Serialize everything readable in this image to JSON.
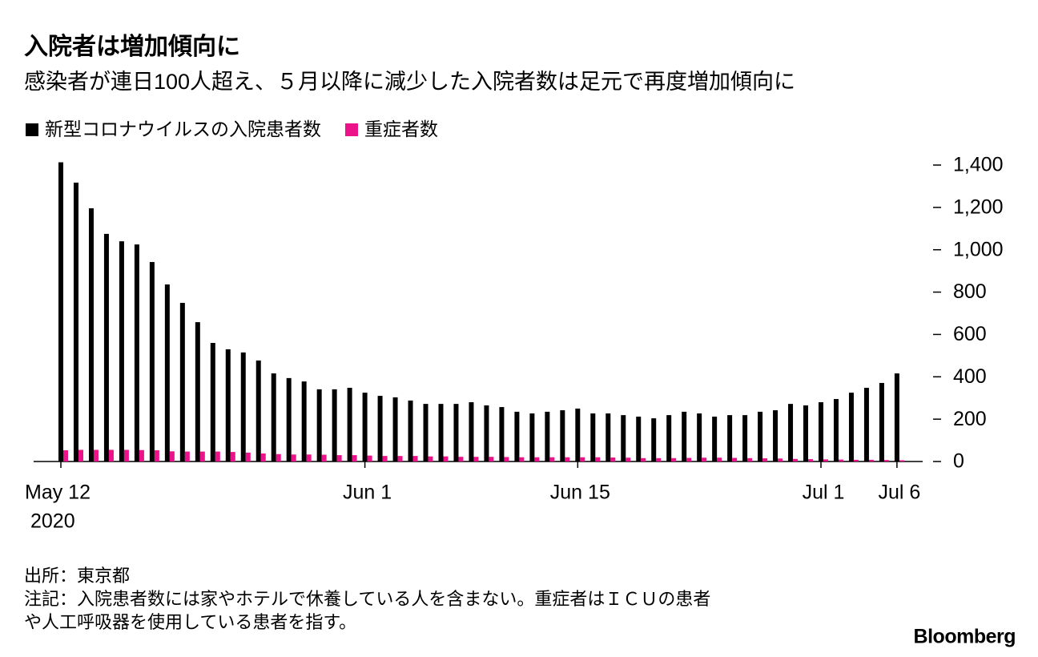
{
  "chart_data": {
    "type": "bar",
    "title": "入院者は増加傾向に",
    "subtitle": "感染者が連日100人超え、５月以降に減少した入院者数は足元で再度増加傾向に",
    "categories": [
      "May 12",
      null,
      null,
      null,
      null,
      null,
      null,
      null,
      null,
      null,
      null,
      null,
      null,
      null,
      null,
      null,
      null,
      null,
      null,
      null,
      "Jun 1",
      null,
      null,
      null,
      null,
      null,
      null,
      null,
      null,
      null,
      null,
      null,
      null,
      null,
      "Jun 15",
      null,
      null,
      null,
      null,
      null,
      null,
      null,
      null,
      null,
      null,
      null,
      null,
      null,
      null,
      null,
      "Jul 1",
      null,
      null,
      null,
      null,
      "Jul 6"
    ],
    "x_year_label": "2020",
    "series": [
      {
        "name": "新型コロナウイルスの入院患者数",
        "color": "#000000",
        "values": [
          1413,
          1317,
          1196,
          1075,
          1040,
          1025,
          942,
          836,
          749,
          658,
          560,
          530,
          515,
          477,
          416,
          394,
          378,
          341,
          341,
          348,
          325,
          310,
          303,
          288,
          272,
          272,
          272,
          280,
          265,
          257,
          235,
          227,
          235,
          242,
          250,
          227,
          227,
          219,
          212,
          204,
          219,
          235,
          227,
          212,
          219,
          219,
          235,
          242,
          272,
          265,
          280,
          295,
          325,
          348,
          371,
          416
        ]
      },
      {
        "name": "重症者数",
        "color": "#ec1289",
        "values": [
          53,
          55,
          55,
          55,
          55,
          54,
          53,
          48,
          47,
          47,
          47,
          45,
          42,
          38,
          35,
          33,
          33,
          32,
          30,
          30,
          28,
          26,
          26,
          26,
          24,
          24,
          22,
          22,
          22,
          21,
          20,
          20,
          20,
          20,
          20,
          20,
          19,
          18,
          16,
          16,
          16,
          17,
          18,
          18,
          17,
          16,
          15,
          14,
          12,
          11,
          10,
          9,
          8,
          8,
          7,
          6
        ]
      }
    ],
    "ylim": [
      0,
      1400
    ],
    "yticks": [
      0,
      200,
      400,
      600,
      800,
      {
        "value": 1000,
        "label": "1,000"
      },
      {
        "value": 1200,
        "label": "1,200"
      },
      {
        "value": 1400,
        "label": "1,400"
      }
    ],
    "y_axis_side": "right",
    "notes": [
      "出所：東京都",
      "注記：入院患者数には家やホテルで休養している人を含まない。重症者はＩＣＵの患者",
      "や人工呼吸器を使用している患者を指す。"
    ],
    "logo": "Bloomberg"
  }
}
